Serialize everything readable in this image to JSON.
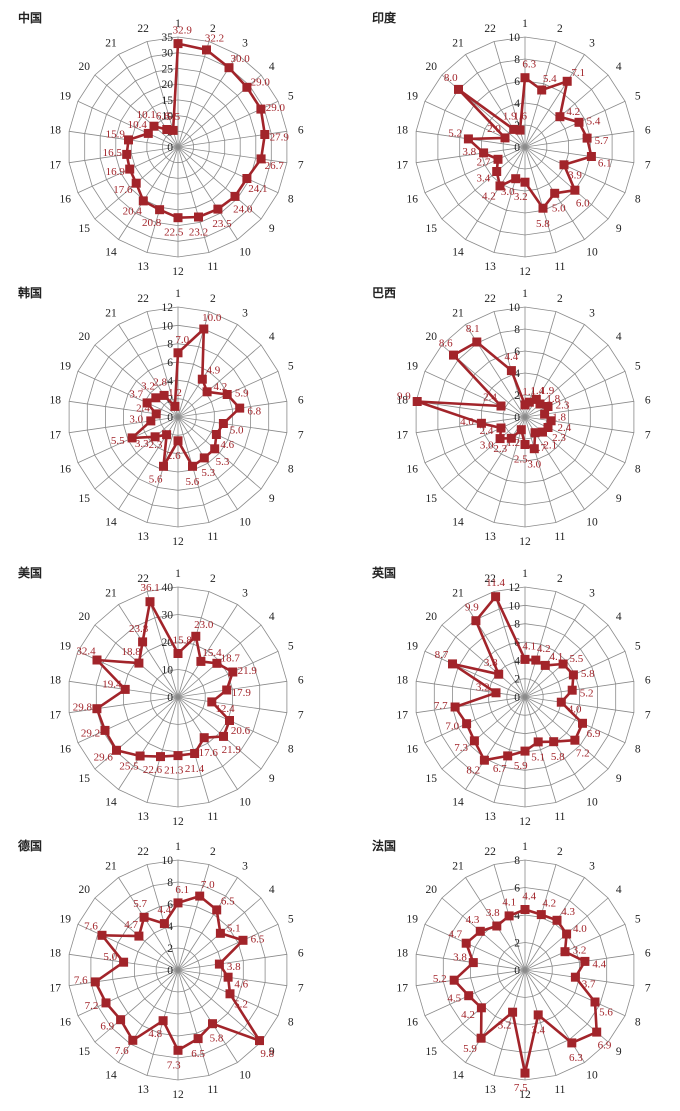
{
  "chart_data": [
    {
      "type": "radar",
      "title": "中国",
      "categories": [
        "1",
        "2",
        "3",
        "4",
        "5",
        "6",
        "7",
        "8",
        "9",
        "10",
        "11",
        "12",
        "13",
        "14",
        "15",
        "16",
        "17",
        "18",
        "19",
        "20",
        "21",
        "22"
      ],
      "ylim": [
        0,
        35
      ],
      "ticks": [
        0,
        5,
        10,
        15,
        20,
        25,
        30,
        35
      ],
      "values": [
        32.9,
        32.2,
        30.0,
        29.0,
        29.0,
        27.9,
        26.7,
        24.1,
        24.0,
        23.5,
        23.2,
        22.5,
        20.8,
        20.4,
        17.6,
        16.9,
        16.5,
        15.9,
        10.4,
        10.1,
        6.6,
        5.5
      ]
    },
    {
      "type": "radar",
      "title": "印度",
      "categories": [
        "1",
        "2",
        "3",
        "4",
        "5",
        "6",
        "7",
        "8",
        "9",
        "10",
        "11",
        "12",
        "13",
        "14",
        "15",
        "16",
        "17",
        "18",
        "19",
        "20",
        "21",
        "22"
      ],
      "ylim": [
        0,
        10
      ],
      "ticks": [
        0,
        2,
        4,
        6,
        8,
        10
      ],
      "values": [
        6.3,
        5.4,
        7.1,
        4.2,
        5.4,
        5.7,
        6.1,
        3.9,
        6.0,
        5.0,
        5.8,
        3.2,
        3.0,
        4.2,
        3.4,
        2.7,
        3.8,
        5.2,
        2.0,
        8.0,
        1.9,
        1.6
      ]
    },
    {
      "type": "radar",
      "title": "韩国",
      "categories": [
        "1",
        "2",
        "3",
        "4",
        "5",
        "6",
        "7",
        "8",
        "9",
        "10",
        "11",
        "12",
        "13",
        "14",
        "15",
        "16",
        "17",
        "18",
        "19",
        "20",
        "21",
        "22"
      ],
      "ylim": [
        0,
        12
      ],
      "ticks": [
        0,
        2,
        4,
        6,
        8,
        10,
        12
      ],
      "values": [
        7.0,
        10.0,
        4.9,
        4.2,
        5.9,
        6.8,
        5.0,
        4.6,
        5.3,
        5.3,
        5.6,
        2.6,
        5.6,
        2.3,
        3.3,
        5.5,
        3.0,
        2.4,
        3.7,
        3.2,
        2.8,
        1.2
      ]
    },
    {
      "type": "radar",
      "title": "巴西",
      "categories": [
        "1",
        "2",
        "3",
        "4",
        "5",
        "6",
        "7",
        "8",
        "9",
        "10",
        "11",
        "12",
        "13",
        "14",
        "15",
        "16",
        "17",
        "18",
        "19",
        "20",
        "21",
        "22"
      ],
      "ylim": [
        0,
        10
      ],
      "ticks": [
        0,
        2,
        4,
        6,
        8,
        10
      ],
      "values": [
        1.1,
        1.4,
        1.9,
        1.8,
        2.3,
        1.8,
        2.4,
        2.3,
        2.1,
        1.7,
        3.0,
        2.5,
        1.2,
        2.3,
        3.0,
        2.4,
        4.0,
        9.9,
        2.4,
        8.6,
        8.1,
        4.4
      ]
    },
    {
      "type": "radar",
      "title": "美国",
      "categories": [
        "1",
        "2",
        "3",
        "4",
        "5",
        "6",
        "7",
        "8",
        "9",
        "10",
        "11",
        "12",
        "13",
        "14",
        "15",
        "16",
        "17",
        "18",
        "19",
        "20",
        "21",
        "22"
      ],
      "ylim": [
        0,
        40
      ],
      "ticks": [
        0,
        10,
        20,
        30,
        40
      ],
      "values": [
        15.8,
        23.0,
        15.4,
        18.7,
        21.9,
        17.9,
        12.4,
        20.6,
        21.9,
        17.6,
        21.4,
        21.3,
        22.6,
        25.5,
        29.6,
        29.2,
        29.8,
        19.4,
        32.4,
        18.8,
        23.8,
        36.1
      ]
    },
    {
      "type": "radar",
      "title": "英国",
      "categories": [
        "1",
        "2",
        "3",
        "4",
        "5",
        "6",
        "7",
        "8",
        "9",
        "10",
        "11",
        "12",
        "13",
        "14",
        "15",
        "16",
        "17",
        "18",
        "19",
        "20",
        "21",
        "22"
      ],
      "ylim": [
        0,
        12
      ],
      "ticks": [
        0,
        2,
        4,
        6,
        8,
        10,
        12
      ],
      "values": [
        4.1,
        4.2,
        4.1,
        5.5,
        5.8,
        5.2,
        4.0,
        6.9,
        7.2,
        5.8,
        5.1,
        5.9,
        6.7,
        8.2,
        7.3,
        7.0,
        7.7,
        3.2,
        8.7,
        3.8,
        9.9,
        11.4
      ]
    },
    {
      "type": "radar",
      "title": "德国",
      "categories": [
        "1",
        "2",
        "3",
        "4",
        "5",
        "6",
        "7",
        "8",
        "9",
        "10",
        "11",
        "12",
        "13",
        "14",
        "15",
        "16",
        "17",
        "18",
        "19",
        "20",
        "21",
        "22"
      ],
      "ylim": [
        0,
        10
      ],
      "ticks": [
        0,
        2,
        4,
        6,
        8,
        10
      ],
      "values": [
        6.1,
        7.0,
        6.5,
        5.1,
        6.5,
        3.8,
        4.6,
        5.2,
        9.8,
        5.8,
        6.5,
        7.3,
        4.8,
        7.6,
        6.9,
        7.2,
        7.6,
        5.0,
        7.6,
        4.7,
        5.7,
        4.4
      ]
    },
    {
      "type": "radar",
      "title": "法国",
      "categories": [
        "1",
        "2",
        "3",
        "4",
        "5",
        "6",
        "7",
        "8",
        "9",
        "10",
        "11",
        "12",
        "13",
        "14",
        "15",
        "16",
        "17",
        "18",
        "19",
        "20",
        "21",
        "22"
      ],
      "ylim": [
        0,
        8
      ],
      "ticks": [
        0,
        2,
        4,
        6,
        8
      ],
      "values": [
        4.4,
        4.2,
        4.3,
        4.0,
        3.2,
        4.4,
        3.7,
        5.6,
        6.9,
        6.3,
        3.4,
        7.5,
        3.2,
        5.9,
        4.2,
        4.5,
        5.2,
        3.8,
        4.7,
        4.3,
        3.8,
        4.1
      ]
    }
  ]
}
